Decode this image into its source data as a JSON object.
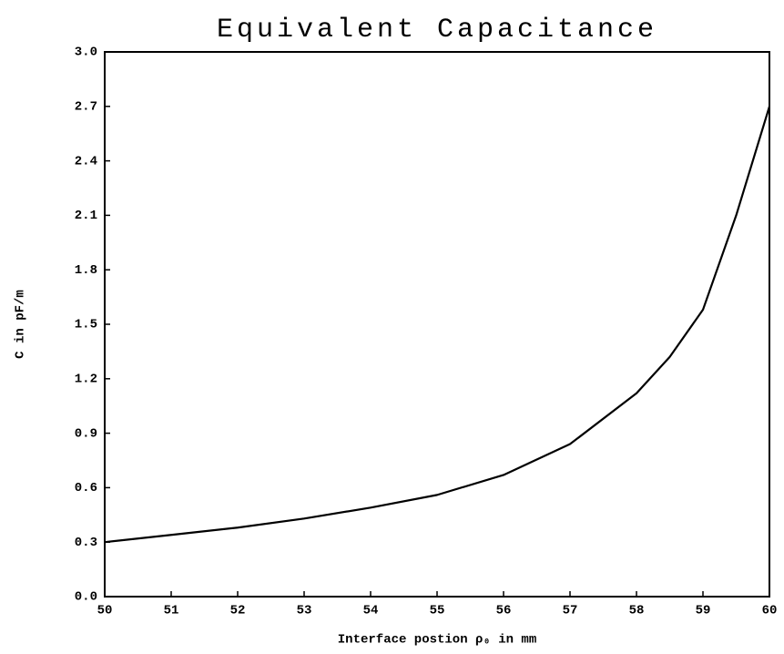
{
  "chart_data": {
    "type": "line",
    "title": "Equivalent Capacitance",
    "xlabel": "Interface postion ρ₀ in mm",
    "ylabel": "C in pF/m",
    "series": [
      {
        "color": "#000000",
        "x": [
          50,
          51,
          52,
          53,
          54,
          55,
          56,
          57,
          58,
          58.5,
          59,
          59.5,
          60
        ],
        "values": [
          0.3,
          0.34,
          0.38,
          0.43,
          0.49,
          0.56,
          0.67,
          0.84,
          1.12,
          1.32,
          1.58,
          2.1,
          2.7
        ]
      }
    ],
    "xlim": [
      50,
      60
    ],
    "xticks": [
      50,
      51,
      52,
      53,
      54,
      55,
      56,
      57,
      58,
      59,
      60
    ],
    "ylim": [
      0,
      3
    ],
    "yticks": [
      {
        "value": 0,
        "label": "0.0"
      },
      0.3,
      0.6,
      0.9,
      1.2,
      1.5,
      1.8,
      2.1,
      2.4,
      2.7,
      {
        "value": 3,
        "label": "3.0"
      }
    ],
    "grid": false
  }
}
